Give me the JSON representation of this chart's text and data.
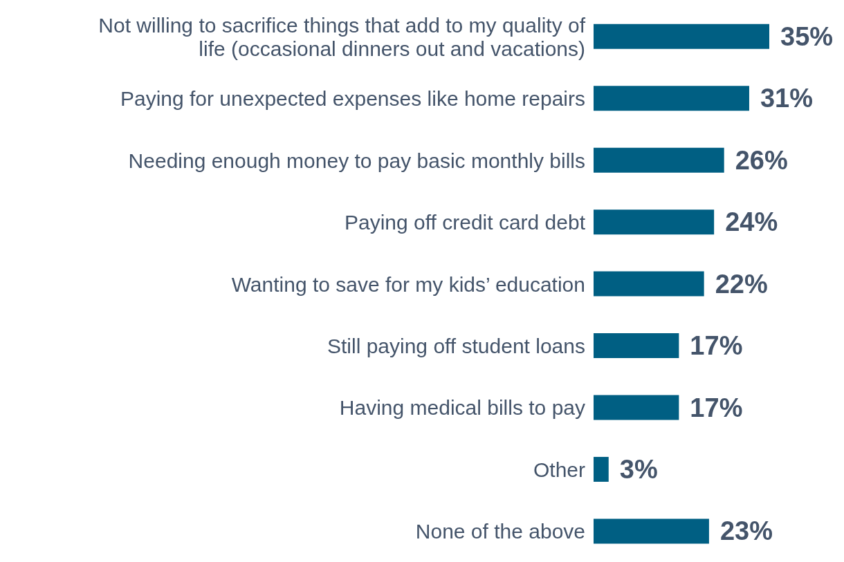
{
  "chart_data": {
    "type": "bar",
    "orientation": "horizontal",
    "categories": [
      "Not willing to sacrifice things that add to my quality of life (occasional dinners out and vacations)",
      "Paying for unexpected expenses like home repairs",
      "Needing enough money to pay basic monthly bills",
      "Paying off credit card debt",
      "Wanting to save for my kids’ education",
      "Still paying off student loans",
      "Having medical bills to pay",
      "Other",
      "None of the above"
    ],
    "values": [
      35,
      31,
      26,
      24,
      22,
      17,
      17,
      3,
      23
    ],
    "value_labels": [
      "35%",
      "31%",
      "26%",
      "24%",
      "22%",
      "17%",
      "17%",
      "3%",
      "23%"
    ],
    "color": "#005f83"
  }
}
